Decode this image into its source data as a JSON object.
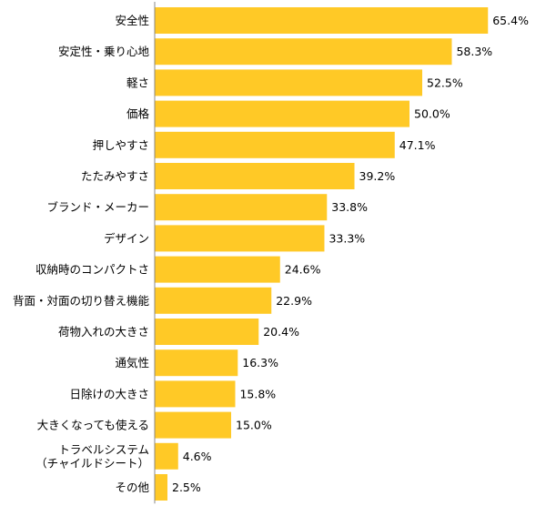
{
  "chart_data": {
    "type": "bar",
    "orientation": "horizontal",
    "categories": [
      "安全性",
      "安定性・乗り心地",
      "軽さ",
      "価格",
      "押しやすさ",
      "たたみやすさ",
      "ブランド・メーカー",
      "デザイン",
      "収納時のコンパクトさ",
      "背面・対面の切り替え機能",
      "荷物入れの大きさ",
      "通気性",
      "日除けの大きさ",
      "大きくなっても使える",
      "トラベルシステム\n（チャイルドシート）",
      "その他"
    ],
    "values": [
      65.4,
      58.3,
      52.5,
      50.0,
      47.1,
      39.2,
      33.8,
      33.3,
      24.6,
      22.9,
      20.4,
      16.3,
      15.8,
      15.0,
      4.6,
      2.5
    ],
    "value_labels": [
      "65.4%",
      "58.3%",
      "52.5%",
      "50.0%",
      "47.1%",
      "39.2%",
      "33.8%",
      "33.3%",
      "24.6%",
      "22.9%",
      "20.4%",
      "16.3%",
      "15.8%",
      "15.0%",
      "4.6%",
      "2.5%"
    ],
    "xlim": [
      0,
      70
    ],
    "bar_color": "#FFC926",
    "axis_color": "#888888",
    "text_color": "#000000",
    "grid": false,
    "legend": "none"
  }
}
